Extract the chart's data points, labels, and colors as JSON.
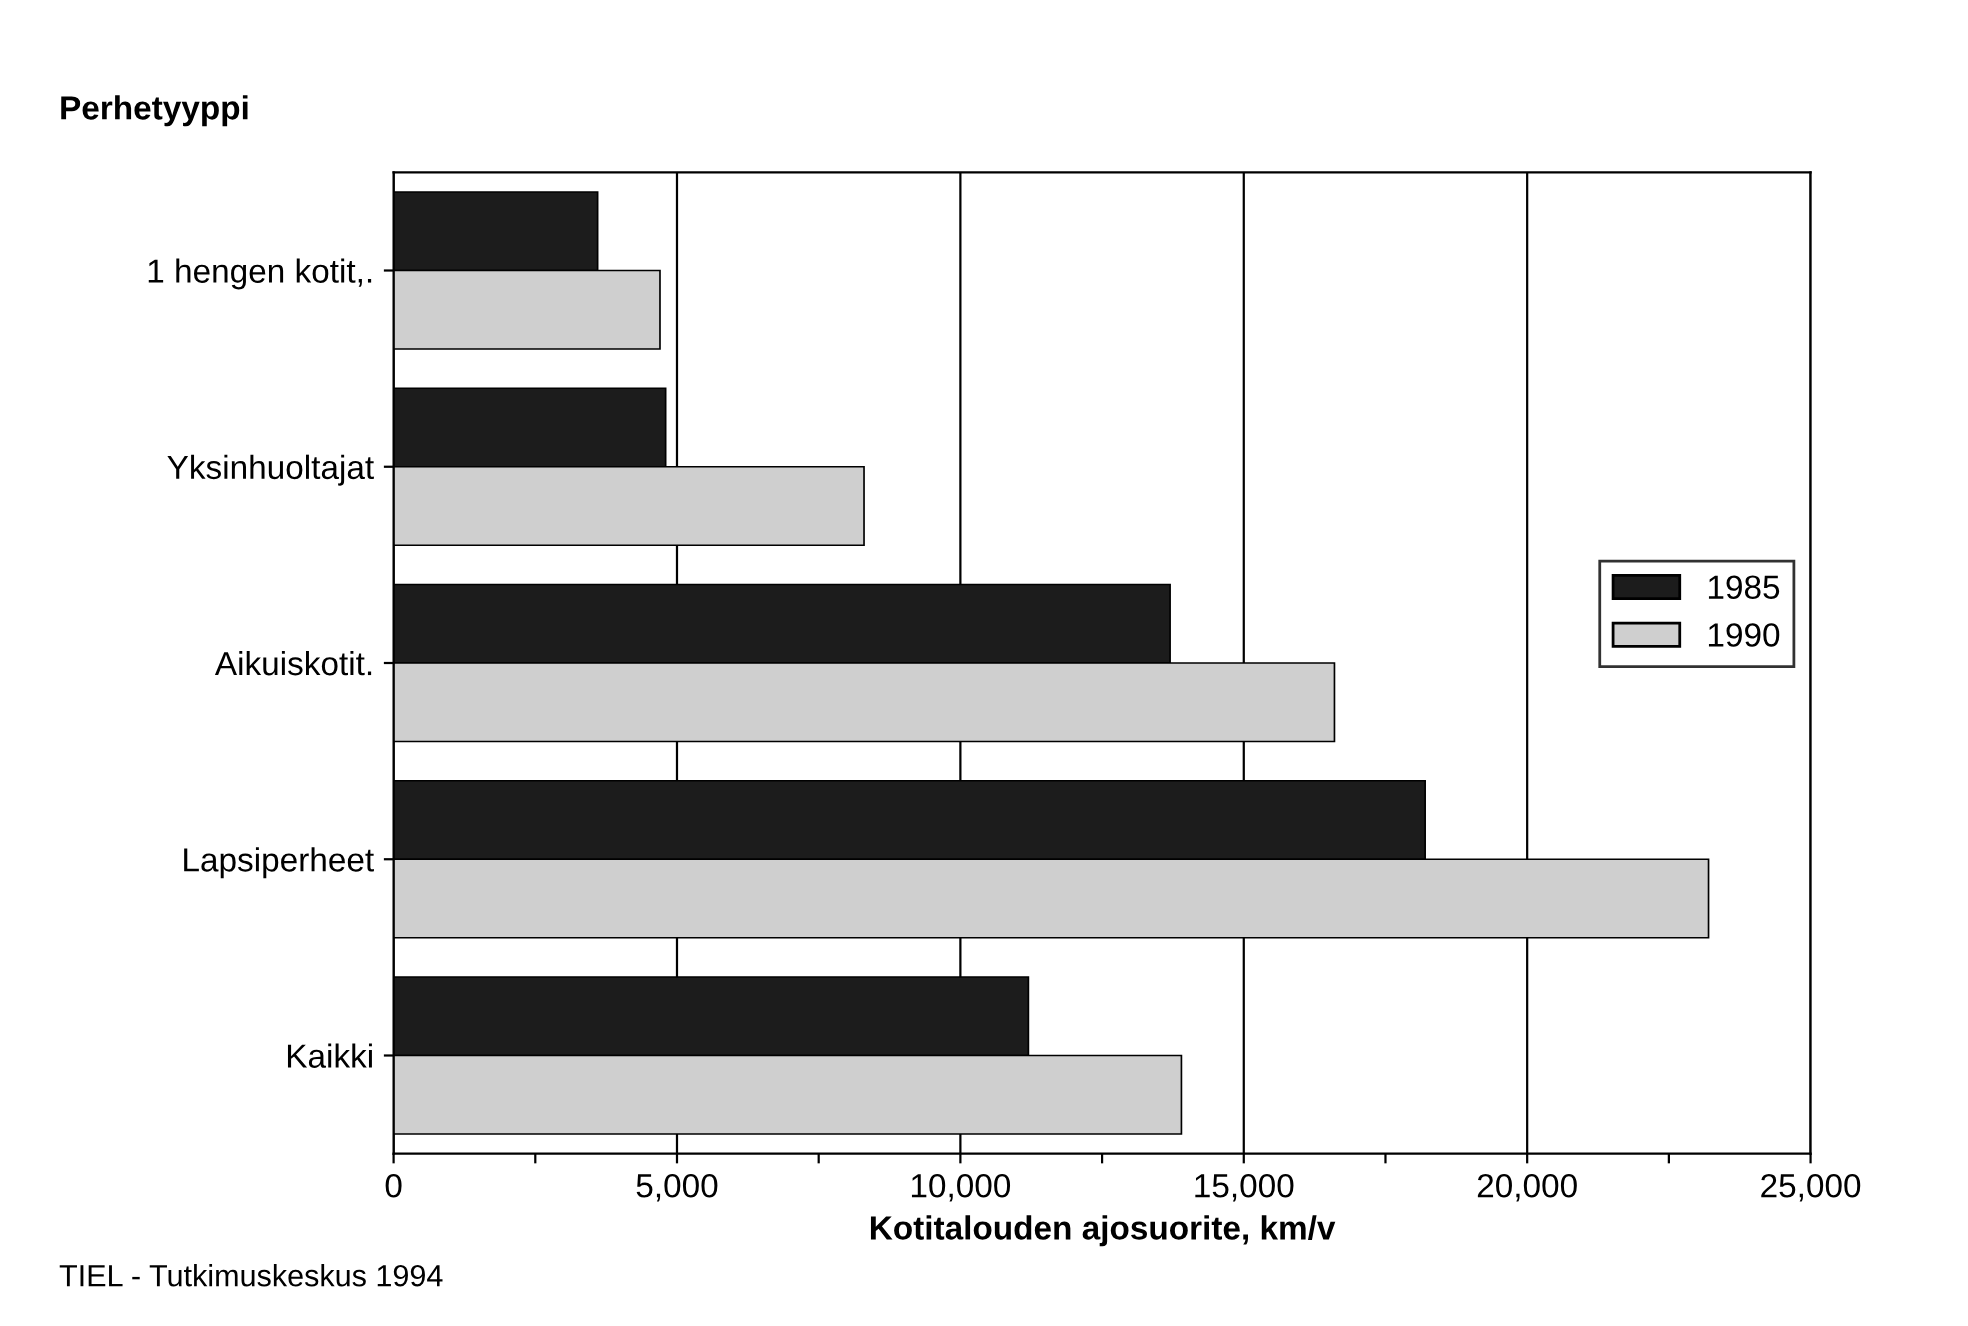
{
  "chart_data": {
    "type": "bar",
    "orientation": "horizontal",
    "ylabel": "Perhetyyppi",
    "xlabel": "Kotitalouden ajosuorite, km/v",
    "categories": [
      "1 hengen kotit,.",
      "Yksinhuoltajat",
      "Aikuiskotit.",
      "Lapsiperheet",
      "Kaikki"
    ],
    "series": [
      {
        "name": "1985",
        "color": "#1c1c1c",
        "values": [
          3600,
          4800,
          13700,
          18200,
          11200
        ]
      },
      {
        "name": "1990",
        "color": "#cfcfcf",
        "values": [
          4700,
          8300,
          16600,
          23200,
          13900
        ]
      }
    ],
    "xlim": [
      0,
      25000
    ],
    "xticks": [
      0,
      {
        "value": 2500,
        "label": null
      },
      {
        "value": 5000,
        "label": "5,000"
      },
      {
        "value": 7500,
        "label": null
      },
      {
        "value": 10000,
        "label": "10,000"
      },
      {
        "value": 12500,
        "label": null
      },
      {
        "value": 15000,
        "label": "15,000"
      },
      {
        "value": 17500,
        "label": null
      },
      {
        "value": 20000,
        "label": "20,000"
      },
      {
        "value": 22500,
        "label": null
      },
      {
        "value": 25000,
        "label": "25,000"
      }
    ],
    "grid": "x",
    "legend": "right",
    "annotations": [
      "TIEL - Tutkimuskeskus 1994"
    ]
  }
}
